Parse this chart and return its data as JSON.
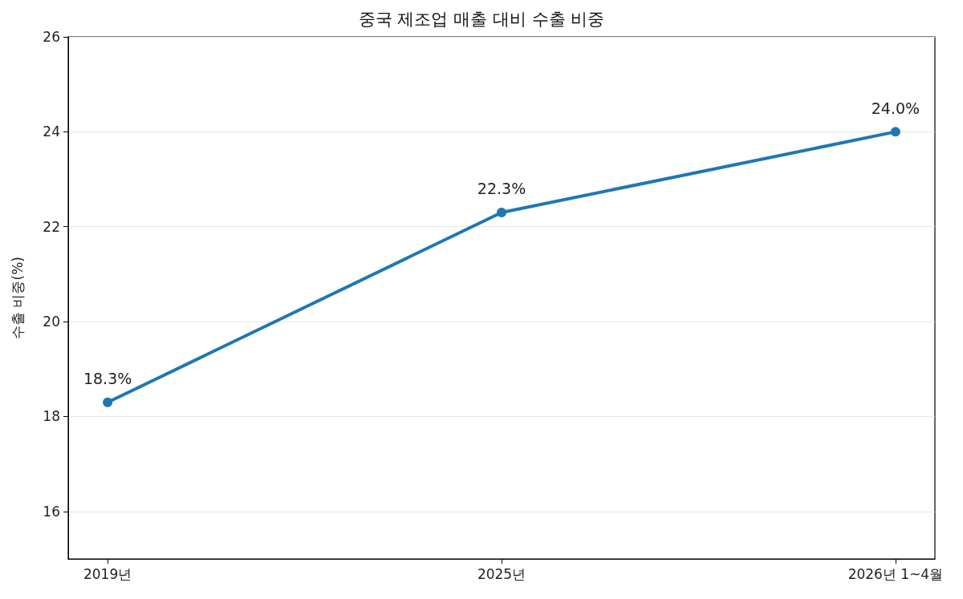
{
  "chart_data": {
    "type": "line",
    "title": "중국 제조업 매출 대비 수출 비중",
    "ylabel": "수출 비중(%)",
    "categories": [
      "2019년",
      "2025년",
      "2026년 1~4월"
    ],
    "series": [
      {
        "color": "#1f77b4",
        "values": [
          18.3,
          22.3,
          24.0
        ],
        "value_labels": [
          "18.3%",
          "22.3%",
          "24.0%"
        ]
      }
    ],
    "ylim": [
      15,
      26
    ],
    "yticks": [
      16,
      18,
      20,
      22,
      24,
      26
    ],
    "grid": "y",
    "marker": "circle",
    "line_style": "solid"
  }
}
